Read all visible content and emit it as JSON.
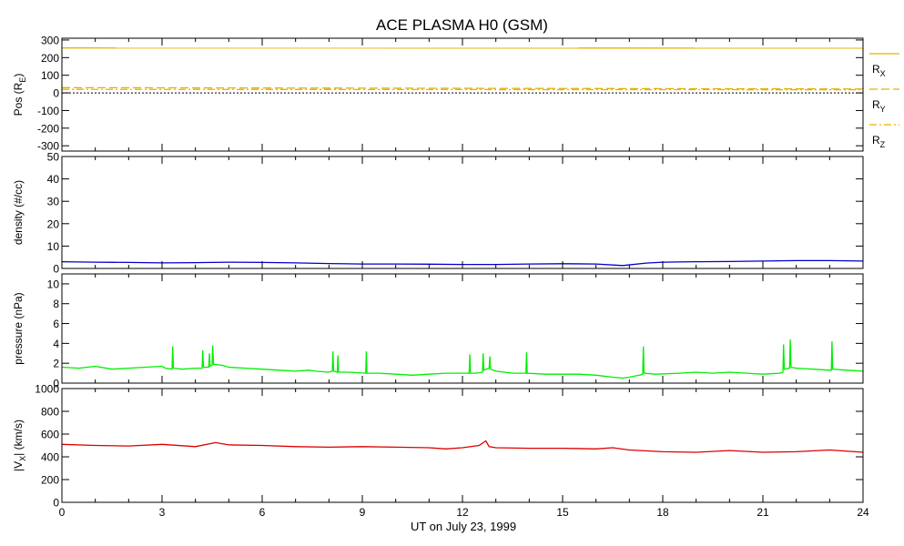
{
  "title": "ACE PLASMA H0 (GSM)",
  "xlabel": "UT on July 23, 1999",
  "x_ticks": [
    "0",
    "3",
    "6",
    "9",
    "12",
    "15",
    "18",
    "21",
    "24"
  ],
  "colors": {
    "position": "#e8b000",
    "density": "#0000cc",
    "pressure": "#00ee00",
    "velocity": "#dd0000",
    "axes": "#000000"
  },
  "chart_data": [
    {
      "type": "line",
      "ylabel": "Pos (R",
      "ylabel_sub": "E",
      "ylabel_end": ")",
      "ylim": [
        -330,
        310
      ],
      "xlim": [
        0,
        24
      ],
      "y_ticks": [
        300,
        200,
        100,
        0,
        -100,
        -200,
        -300
      ],
      "y_tick_labels": [
        "300",
        "200",
        "100",
        "0",
        "-100",
        "-200",
        "-300"
      ],
      "zero_line": true,
      "legend": [
        {
          "label": "R",
          "sub": "X",
          "style": "solid"
        },
        {
          "label": "R",
          "sub": "Y",
          "style": "dashed"
        },
        {
          "label": "R",
          "sub": "Z",
          "style": "dashdot"
        }
      ],
      "legend_position": "right",
      "series": [
        {
          "name": "RX",
          "style": "solid",
          "x": [
            0,
            24
          ],
          "values": [
            255,
            254
          ]
        },
        {
          "name": "RY",
          "style": "dashed",
          "x": [
            0,
            24
          ],
          "values": [
            30,
            22
          ]
        },
        {
          "name": "RZ",
          "style": "dashdot",
          "x": [
            0,
            24
          ],
          "values": [
            20,
            18
          ]
        }
      ]
    },
    {
      "type": "line",
      "ylabel": "density (#/cc)",
      "ylim": [
        0,
        50
      ],
      "xlim": [
        0,
        24
      ],
      "y_ticks": [
        0,
        10,
        20,
        30,
        40,
        50
      ],
      "y_tick_labels": [
        "0",
        "10",
        "20",
        "30",
        "40",
        "50"
      ],
      "series": [
        {
          "name": "density",
          "x": [
            0,
            1,
            2,
            3,
            4,
            5,
            6,
            7,
            8,
            9,
            10,
            11,
            12,
            13,
            14,
            15,
            16,
            16.8,
            17.5,
            18,
            19,
            20,
            21,
            22,
            23,
            24
          ],
          "values": [
            3.0,
            2.8,
            2.7,
            2.5,
            2.6,
            2.8,
            2.7,
            2.5,
            2.2,
            2.0,
            2.0,
            1.9,
            1.8,
            1.8,
            2.0,
            2.1,
            2.0,
            1.3,
            2.4,
            2.8,
            3.0,
            3.1,
            3.3,
            3.5,
            3.5,
            3.3
          ]
        }
      ]
    },
    {
      "type": "line",
      "ylabel": "pressure (nPa)",
      "ylim": [
        0,
        11
      ],
      "xlim": [
        0,
        24
      ],
      "y_ticks": [
        0,
        2,
        4,
        6,
        8,
        10
      ],
      "y_tick_labels": [
        "0",
        "2",
        "4",
        "6",
        "8",
        "10"
      ],
      "series": [
        {
          "name": "pressure",
          "x": [
            0,
            0.5,
            1,
            1.5,
            2,
            2.5,
            3,
            3.1,
            3.3,
            3.32,
            3.34,
            3.6,
            4,
            4.2,
            4.22,
            4.24,
            4.4,
            4.42,
            4.44,
            4.5,
            4.52,
            4.54,
            4.8,
            5,
            5.5,
            6,
            6.5,
            7,
            7.4,
            7.6,
            8,
            8.1,
            8.12,
            8.14,
            8.25,
            8.27,
            8.29,
            8.6,
            9.1,
            9.12,
            9.14,
            9.5,
            10,
            10.5,
            11,
            11.5,
            12,
            12.2,
            12.22,
            12.24,
            12.4,
            12.6,
            12.62,
            12.64,
            12.7,
            12.8,
            12.82,
            12.84,
            13,
            13.5,
            13.9,
            13.92,
            13.94,
            14.5,
            15,
            15.5,
            16,
            16.5,
            16.8,
            17,
            17.3,
            17.4,
            17.42,
            17.44,
            17.8,
            18.5,
            19,
            19.5,
            20,
            20.5,
            21,
            21.5,
            21.6,
            21.62,
            21.64,
            21.8,
            21.82,
            21.84,
            22,
            22.5,
            23,
            23.05,
            23.07,
            23.09,
            23.5,
            24
          ],
          "values": [
            1.6,
            1.5,
            1.7,
            1.4,
            1.5,
            1.6,
            1.7,
            1.5,
            1.4,
            3.7,
            1.5,
            1.4,
            1.5,
            1.5,
            3.3,
            1.6,
            1.6,
            3.0,
            1.7,
            1.8,
            3.8,
            1.9,
            1.8,
            1.6,
            1.5,
            1.4,
            1.3,
            1.2,
            1.3,
            1.2,
            1.1,
            1.2,
            3.2,
            1.2,
            1.1,
            2.8,
            1.1,
            1.1,
            1.0,
            3.2,
            1.0,
            1.0,
            0.9,
            0.8,
            0.9,
            1.0,
            1.0,
            1.0,
            2.9,
            1.0,
            1.0,
            1.1,
            3.0,
            1.3,
            1.4,
            1.5,
            2.7,
            1.4,
            1.2,
            1.0,
            1.0,
            3.1,
            1.0,
            0.9,
            0.9,
            0.9,
            0.8,
            0.6,
            0.5,
            0.6,
            0.8,
            0.9,
            3.7,
            1.0,
            0.9,
            1.0,
            1.1,
            1.0,
            1.1,
            1.0,
            0.9,
            1.0,
            1.1,
            3.9,
            1.4,
            1.5,
            4.4,
            1.6,
            1.5,
            1.4,
            1.3,
            1.3,
            4.2,
            1.4,
            1.3,
            1.2
          ]
        }
      ]
    },
    {
      "type": "line",
      "ylabel": "|V",
      "ylabel_sub": "X",
      "ylabel_end": "| (km/s)",
      "ylim": [
        0,
        1000
      ],
      "xlim": [
        0,
        24
      ],
      "y_ticks": [
        0,
        200,
        400,
        600,
        800,
        1000
      ],
      "y_tick_labels": [
        "0",
        "200",
        "400",
        "600",
        "800",
        "1000"
      ],
      "series": [
        {
          "name": "velocity",
          "x": [
            0,
            1,
            2,
            3,
            4,
            4.6,
            5,
            6,
            7,
            8,
            9,
            10,
            11,
            11.5,
            12,
            12.5,
            12.7,
            12.8,
            13,
            14,
            15,
            16,
            16.5,
            17,
            18,
            19,
            20,
            21,
            22,
            23,
            24
          ],
          "values": [
            510,
            500,
            495,
            510,
            490,
            525,
            505,
            500,
            490,
            485,
            490,
            485,
            480,
            470,
            480,
            500,
            540,
            490,
            480,
            475,
            475,
            470,
            480,
            460,
            445,
            440,
            455,
            440,
            445,
            460,
            440
          ]
        }
      ]
    }
  ]
}
